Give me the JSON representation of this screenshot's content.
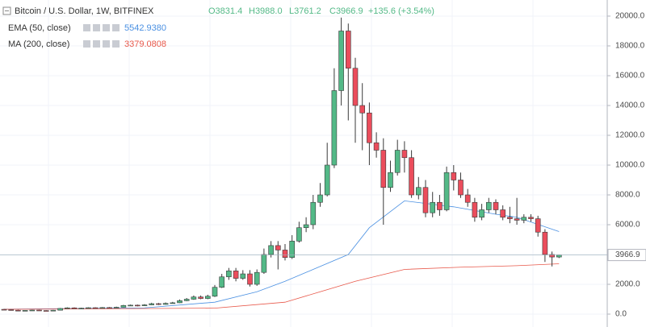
{
  "chart_data": {
    "type": "candlestick",
    "title": "Bitcoin / U.S. Dollar, 1W, BITFINEX",
    "ohlc_labels": [
      "O3831.4",
      "H3988.0",
      "L3761.2",
      "C3966.9"
    ],
    "change_label": "+135.6 (+3.54%)",
    "up_color": "#53b987",
    "down_color": "#eb4d5c",
    "open": [
      320,
      300,
      260,
      240,
      250,
      270,
      240,
      230,
      260,
      380,
      420,
      380,
      400,
      430,
      420,
      440,
      430,
      460,
      580,
      600,
      560,
      620,
      700,
      650,
      720,
      760,
      900,
      1000,
      1150,
      1050,
      1200,
      1800,
      2500,
      2900,
      2400,
      2700,
      2000,
      2800,
      4000,
      4600,
      4300,
      3800,
      4900,
      5800,
      6000,
      7500,
      8000,
      10000,
      15000,
      19000,
      16500,
      14000,
      13500,
      11500,
      11000,
      8500,
      9500,
      11000,
      10500,
      8000,
      8500,
      6800,
      7500,
      7000,
      9500,
      9000,
      8000,
      7500,
      6500,
      7000,
      7500,
      7000,
      6500,
      6400,
      6300,
      6500,
      6400,
      5500,
      4000,
      3831.4
    ],
    "high": [
      350,
      330,
      290,
      270,
      290,
      290,
      260,
      280,
      410,
      460,
      450,
      430,
      460,
      460,
      470,
      470,
      500,
      620,
      640,
      640,
      670,
      760,
      750,
      780,
      820,
      980,
      1080,
      1250,
      1250,
      1300,
      1950,
      2700,
      3100,
      3100,
      2950,
      2950,
      3000,
      4400,
      4900,
      4900,
      4700,
      5300,
      6200,
      6500,
      8000,
      8800,
      11500,
      16500,
      19900,
      19500,
      17200,
      15500,
      14200,
      12200,
      11800,
      10300,
      11700,
      11600,
      11000,
      9200,
      9000,
      8200,
      8000,
      9900,
      10000,
      9500,
      8400,
      7800,
      7400,
      7800,
      7700,
      7300,
      7200,
      7800,
      6700,
      6700,
      6600,
      5700,
      4200,
      3988.0
    ],
    "low": [
      270,
      240,
      220,
      220,
      230,
      220,
      210,
      210,
      250,
      360,
      350,
      360,
      380,
      390,
      400,
      410,
      410,
      450,
      550,
      520,
      540,
      600,
      610,
      630,
      700,
      740,
      870,
      960,
      1000,
      1000,
      1150,
      1750,
      2300,
      2200,
      2300,
      1850,
      1900,
      2700,
      3800,
      3000,
      3600,
      3700,
      4800,
      5500,
      5700,
      7200,
      7900,
      9800,
      14000,
      13000,
      11500,
      11000,
      10000,
      10500,
      6000,
      8200,
      9300,
      9500,
      7800,
      7700,
      6500,
      6500,
      6600,
      6900,
      8300,
      7800,
      7200,
      6200,
      6300,
      6800,
      6700,
      6300,
      6100,
      6000,
      6100,
      6200,
      5200,
      3500,
      3200,
      3761.2
    ],
    "close": [
      300,
      260,
      240,
      250,
      270,
      240,
      230,
      260,
      380,
      420,
      380,
      400,
      430,
      420,
      440,
      430,
      460,
      580,
      600,
      560,
      620,
      700,
      650,
      720,
      760,
      900,
      1000,
      1150,
      1050,
      1200,
      1800,
      2500,
      2900,
      2400,
      2700,
      2000,
      2800,
      4000,
      4600,
      4300,
      3800,
      4900,
      5800,
      6000,
      7500,
      8000,
      10000,
      15000,
      19000,
      16500,
      14000,
      13500,
      11500,
      11000,
      8500,
      9500,
      11000,
      10500,
      8000,
      8500,
      6800,
      7500,
      7000,
      9500,
      9000,
      8000,
      7500,
      6500,
      7000,
      7500,
      7000,
      6500,
      6400,
      6300,
      6500,
      6400,
      5500,
      4000,
      3831.4,
      3966.9
    ],
    "last_price": 3966.9,
    "series": [
      {
        "name": "EMA (50, close)",
        "color": "#4a90e2",
        "value_label": "5542.9380",
        "x": [
          0,
          20,
          30,
          36,
          40,
          44,
          49,
          52,
          57,
          64,
          70,
          73,
          79
        ],
        "values": [
          330,
          420,
          800,
          1500,
          2200,
          3000,
          4000,
          5800,
          7600,
          7200,
          6700,
          6500,
          5542.938
        ]
      },
      {
        "name": "MA (200, close)",
        "color": "#e8584a",
        "value_label": "3379.0808",
        "x": [
          0,
          30,
          40,
          45,
          50,
          57,
          65,
          73,
          79
        ],
        "values": [
          320,
          400,
          800,
          1500,
          2200,
          3000,
          3150,
          3250,
          3379.0808
        ]
      }
    ],
    "ylim": [
      -865,
      21080
    ],
    "yticks": [
      {
        "value": 0,
        "label": "0.0"
      },
      {
        "value": 2000,
        "label": "2000.0"
      },
      {
        "value": 4000,
        "label": "4000.0"
      },
      {
        "value": 6000,
        "label": "6000.0"
      },
      {
        "value": 8000,
        "label": "8000.0"
      },
      {
        "value": 10000,
        "label": "10000.0"
      },
      {
        "value": 12000,
        "label": "12000.0"
      },
      {
        "value": 14000,
        "label": "14000.0"
      },
      {
        "value": 16000,
        "label": "16000.0"
      },
      {
        "value": 18000,
        "label": "18000.0"
      },
      {
        "value": 20000,
        "label": "20000.0"
      }
    ],
    "grid": true
  }
}
